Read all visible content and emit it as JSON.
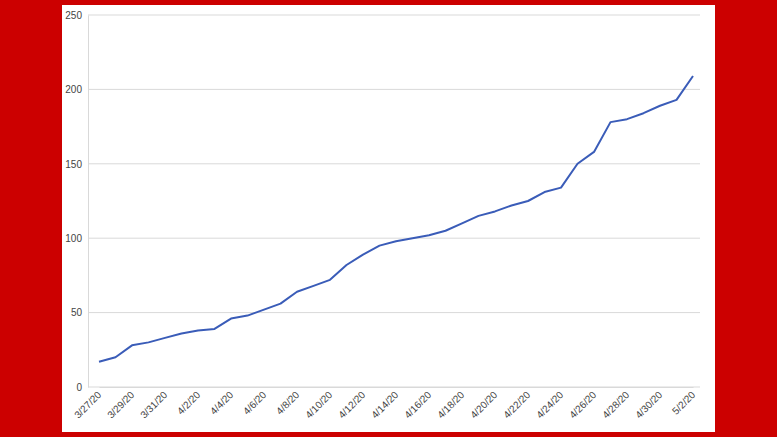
{
  "chart_data": {
    "type": "line",
    "categories": [
      "3/27/20",
      null,
      "3/29/20",
      null,
      "3/31/20",
      null,
      "4/2/20",
      null,
      "4/4/20",
      null,
      "4/6/20",
      null,
      "4/8/20",
      null,
      "4/10/20",
      null,
      "4/12/20",
      null,
      "4/14/20",
      null,
      "4/16/20",
      null,
      "4/18/20",
      null,
      "4/20/20",
      null,
      "4/22/20",
      null,
      "4/24/20",
      null,
      "4/26/20",
      null,
      "4/28/20",
      null,
      "4/30/20",
      null,
      "5/2/20"
    ],
    "values": [
      17,
      20,
      28,
      30,
      33,
      36,
      38,
      39,
      46,
      48,
      52,
      56,
      64,
      68,
      72,
      82,
      89,
      95,
      98,
      100,
      102,
      105,
      110,
      115,
      118,
      122,
      125,
      131,
      134,
      150,
      158,
      178,
      180,
      184,
      189,
      193,
      209
    ],
    "color": "#3a5cb8",
    "ylim": [
      0,
      250
    ],
    "yticks": [
      0,
      50,
      100,
      150,
      200,
      250
    ],
    "grid": true
  }
}
